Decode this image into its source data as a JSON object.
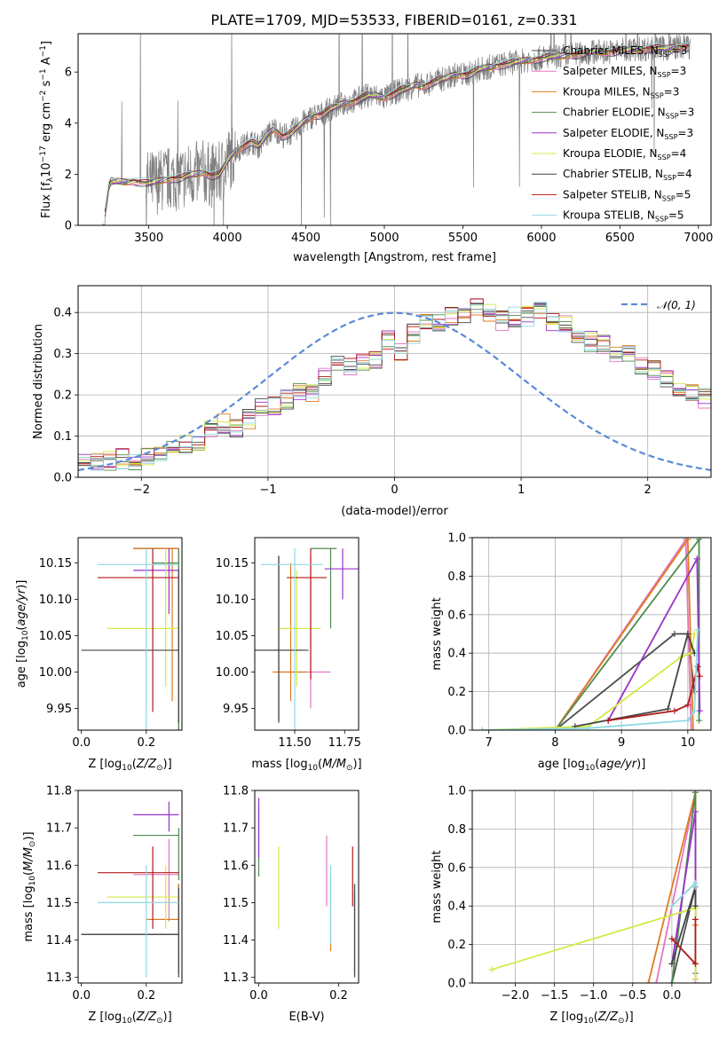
{
  "figure": {
    "title": "PLATE=1709, MJD=53533, FIBERID=0161, z=0.331"
  },
  "colors": {
    "spectrum": "#7f7f7f",
    "gaussian": "#5b8bd6"
  },
  "models": [
    {
      "label": "Chabrier MILES, N",
      "nssp": "=3",
      "color": "#4c4c4c"
    },
    {
      "label": "Salpeter MILES, N",
      "nssp": "=3",
      "color": "#e377c2"
    },
    {
      "label": "Kroupa MILES, N",
      "nssp": "=3",
      "color": "#e07b1f"
    },
    {
      "label": "Chabrier ELODIE, N",
      "nssp": "=3",
      "color": "#4f8b4f"
    },
    {
      "label": "Salpeter ELODIE, N",
      "nssp": "=3",
      "color": "#9932cc"
    },
    {
      "label": "Kroupa ELODIE, N",
      "nssp": "=4",
      "color": "#d4ea45"
    },
    {
      "label": "Chabrier STELIB, N",
      "nssp": "=4",
      "color": "#444444"
    },
    {
      "label": "Salpeter STELIB, N",
      "nssp": "=5",
      "color": "#b21a1a"
    },
    {
      "label": "Kroupa STELIB, N",
      "nssp": "=5",
      "color": "#8fd9e0"
    }
  ],
  "chart_data": [
    {
      "id": "spectrum",
      "type": "line",
      "title": "PLATE=1709, MJD=53533, FIBERID=0161, z=0.331",
      "xlabel": "wavelength [Angstrom, rest frame]",
      "ylabel": "Flux [f",
      "xlim": [
        3050,
        7080
      ],
      "ylim": [
        0,
        7.5
      ],
      "xticks": [
        3500,
        4000,
        4500,
        5000,
        5500,
        6000,
        6500,
        7000
      ],
      "yticks": [
        0,
        2,
        4,
        6
      ],
      "continuum": {
        "x": [
          3210,
          3250,
          3300,
          3350,
          3400,
          3450,
          3500,
          3550,
          3600,
          3650,
          3700,
          3750,
          3800,
          3850,
          3900,
          3950,
          4000,
          4050,
          4100,
          4150,
          4200,
          4250,
          4300,
          4350,
          4400,
          4450,
          4500,
          4550,
          4600,
          4650,
          4700,
          4750,
          4800,
          4850,
          4900,
          4950,
          5000,
          5050,
          5100,
          5150,
          5200,
          5250,
          5300,
          5350,
          5400,
          5450,
          5500,
          5550,
          5600,
          5650,
          5700,
          5750,
          5800,
          5850,
          5900,
          5950,
          6000,
          6050,
          6100,
          6150,
          6200,
          6250,
          6300,
          6350,
          6400,
          6450,
          6500,
          6550,
          6600,
          6650,
          6700,
          6750,
          6800,
          6850,
          6900,
          6950
        ],
        "y": [
          0.0,
          1.7,
          1.7,
          1.7,
          1.75,
          1.7,
          1.65,
          1.7,
          1.8,
          1.85,
          1.85,
          1.95,
          2.0,
          2.1,
          1.95,
          2.0,
          2.5,
          2.9,
          3.1,
          3.3,
          3.1,
          3.5,
          3.8,
          3.5,
          3.6,
          3.85,
          4.1,
          4.3,
          4.35,
          4.55,
          4.65,
          4.8,
          4.85,
          5.0,
          5.1,
          5.05,
          5.0,
          5.15,
          5.3,
          5.35,
          5.5,
          5.45,
          5.6,
          5.7,
          5.75,
          5.9,
          5.9,
          5.95,
          6.1,
          6.15,
          6.25,
          6.3,
          6.35,
          6.4,
          6.45,
          6.5,
          6.55,
          6.6,
          6.6,
          6.65,
          6.7,
          6.7,
          6.75,
          6.8,
          6.8,
          6.8,
          6.85,
          6.85,
          6.9,
          6.9,
          6.95,
          6.95,
          6.9,
          7.0,
          7.0,
          7.0
        ]
      }
    },
    {
      "id": "residuals",
      "type": "histogram",
      "xlabel": "(data-model)/error",
      "ylabel": "Normed distribution",
      "xlim": [
        -2.5,
        2.5
      ],
      "ylim": [
        0,
        0.465
      ],
      "xticks": [
        -2,
        -1,
        0,
        1,
        2
      ],
      "yticks": [
        0.0,
        0.1,
        0.2,
        0.3,
        0.4
      ],
      "bin_start": -2.5,
      "bin_width": 0.1,
      "gaussian_label": "𝒩(0, 1)",
      "base_hist": [
        0.035,
        0.04,
        0.04,
        0.045,
        0.04,
        0.05,
        0.06,
        0.065,
        0.08,
        0.09,
        0.12,
        0.13,
        0.12,
        0.14,
        0.17,
        0.17,
        0.19,
        0.21,
        0.2,
        0.24,
        0.27,
        0.27,
        0.28,
        0.28,
        0.33,
        0.3,
        0.35,
        0.38,
        0.38,
        0.39,
        0.4,
        0.41,
        0.4,
        0.38,
        0.39,
        0.39,
        0.4,
        0.38,
        0.37,
        0.35,
        0.33,
        0.32,
        0.3,
        0.3,
        0.27,
        0.26,
        0.24,
        0.22,
        0.21,
        0.19,
        0.17,
        0.15,
        0.14,
        0.12,
        0.12,
        0.11,
        0.1,
        0.08,
        0.07,
        0.06,
        0.06,
        0.05,
        0.06,
        0.05,
        0.06,
        0.05,
        0.04,
        0.05,
        0.05,
        0.05
      ]
    },
    {
      "id": "age-vs-z",
      "type": "errorbar",
      "xlabel": "Z [log",
      "ylabel": "age  [log",
      "xlim": [
        -0.01,
        0.31
      ],
      "ylim": [
        9.92,
        10.185
      ],
      "xticks": [
        0.0,
        0.2
      ],
      "yticks": [
        9.95,
        10.0,
        10.05,
        10.1,
        10.15
      ],
      "points": [
        {
          "x": 0.3,
          "y": 10.17,
          "xl": 0.16,
          "xh": 0.3,
          "yl": 9.92,
          "yh": 10.17
        },
        {
          "x": 0.3,
          "y": 10.17,
          "xl": 0.25,
          "xh": 0.3,
          "yl": 9.92,
          "yh": 10.17
        },
        {
          "x": 0.28,
          "y": 10.17,
          "xl": 0.16,
          "xh": 0.3,
          "yl": 9.96,
          "yh": 10.17
        },
        {
          "x": 0.3,
          "y": 10.15,
          "xl": 0.22,
          "xh": 0.3,
          "yl": 9.92,
          "yh": 10.17
        },
        {
          "x": 0.27,
          "y": 10.14,
          "xl": 0.16,
          "xh": 0.3,
          "yl": 10.08,
          "yh": 10.17
        },
        {
          "x": 0.26,
          "y": 10.06,
          "xl": 0.08,
          "xh": 0.3,
          "yl": 9.98,
          "yh": 10.17
        },
        {
          "x": 0.3,
          "y": 10.03,
          "xl": 0.0,
          "xh": 0.3,
          "yl": 9.93,
          "yh": 10.14
        },
        {
          "x": 0.22,
          "y": 10.13,
          "xl": 0.05,
          "xh": 0.3,
          "yl": 9.945,
          "yh": 10.17
        },
        {
          "x": 0.2,
          "y": 10.148,
          "xl": 0.05,
          "xh": 0.3,
          "yl": 9.92,
          "yh": 10.17
        }
      ]
    },
    {
      "id": "age-vs-mass",
      "type": "errorbar",
      "xlabel": "mass [log",
      "ylabel": "",
      "xlim": [
        11.3,
        11.82
      ],
      "ylim": [
        9.92,
        10.185
      ],
      "xticks": [
        11.5,
        11.75
      ],
      "yticks": [
        9.95,
        10.0,
        10.05,
        10.1,
        10.15
      ],
      "points": [
        {
          "x": 11.42,
          "y": 10.03,
          "xl": 11.3,
          "xh": 11.57,
          "yl": 9.935,
          "yh": 10.16
        },
        {
          "x": 11.58,
          "y": 10.0,
          "xl": 11.43,
          "xh": 11.68,
          "yl": 9.95,
          "yh": 10.16
        },
        {
          "x": 11.48,
          "y": 10.0,
          "xl": 11.39,
          "xh": 11.56,
          "yl": 9.96,
          "yh": 10.15
        },
        {
          "x": 11.68,
          "y": 10.17,
          "xl": 11.58,
          "xh": 11.71,
          "yl": 10.06,
          "yh": 10.17
        },
        {
          "x": 11.74,
          "y": 10.142,
          "xl": 11.65,
          "xh": 11.82,
          "yl": 10.1,
          "yh": 10.17
        },
        {
          "x": 11.51,
          "y": 10.06,
          "xl": 11.42,
          "xh": 11.63,
          "yl": 9.98,
          "yh": 10.14
        },
        {
          "x": 11.42,
          "y": 10.03,
          "xl": 11.3,
          "xh": 11.55,
          "yl": 9.93,
          "yh": 10.16
        },
        {
          "x": 11.58,
          "y": 10.13,
          "xl": 11.46,
          "xh": 11.66,
          "yl": 9.99,
          "yh": 10.17
        },
        {
          "x": 11.5,
          "y": 10.148,
          "xl": 11.33,
          "xh": 11.64,
          "yl": 9.92,
          "yh": 10.17
        }
      ]
    },
    {
      "id": "weight-vs-age",
      "type": "line",
      "xlabel": "age  [log",
      "ylabel": "mass weight",
      "xlim": [
        6.75,
        10.35
      ],
      "ylim": [
        0,
        1.0
      ],
      "xticks": [
        7,
        8,
        9,
        10
      ],
      "yticks": [
        0.0,
        0.2,
        0.4,
        0.6,
        0.8,
        1.0
      ],
      "series": [
        {
          "x": [
            8.0,
            9.8,
            10.0,
            10.1
          ],
          "y": [
            0.0,
            0.5,
            0.5,
            0.2
          ]
        },
        {
          "x": [
            8.0,
            9.97,
            10.05
          ],
          "y": [
            0.0,
            0.99,
            0.0
          ]
        },
        {
          "x": [
            8.0,
            10.0,
            10.08
          ],
          "y": [
            0.0,
            0.99,
            0.0
          ]
        },
        {
          "x": [
            8.0,
            10.17,
            10.17
          ],
          "y": [
            0.0,
            0.99,
            0.05
          ]
        },
        {
          "x": [
            8.8,
            10.14,
            10.18
          ],
          "y": [
            0.05,
            0.89,
            0.1
          ]
        },
        {
          "x": [
            6.9,
            8.5,
            9.9,
            10.05,
            10.1
          ],
          "y": [
            0.0,
            0.02,
            0.38,
            0.4,
            0.5
          ]
        },
        {
          "x": [
            8.3,
            9.7,
            10.0,
            10.1
          ],
          "y": [
            0.02,
            0.11,
            0.5,
            0.4
          ]
        },
        {
          "x": [
            8.8,
            9.8,
            10.0,
            10.15,
            10.18
          ],
          "y": [
            0.05,
            0.1,
            0.13,
            0.33,
            0.28
          ]
        },
        {
          "x": [
            6.9,
            8.5,
            10.0,
            10.1,
            10.15
          ],
          "y": [
            0.0,
            0.01,
            0.05,
            0.1,
            0.52
          ]
        }
      ]
    },
    {
      "id": "mass-vs-z",
      "type": "errorbar",
      "xlabel": "Z [log",
      "ylabel": "mass [log",
      "xlim": [
        -0.01,
        0.31
      ],
      "ylim": [
        11.285,
        11.8
      ],
      "xticks": [
        0.0,
        0.2
      ],
      "yticks": [
        11.3,
        11.4,
        11.5,
        11.6,
        11.7,
        11.8
      ],
      "points": [
        {
          "x": 0.3,
          "y": 11.415,
          "xl": 0.0,
          "xh": 0.3,
          "yl": 11.3,
          "yh": 11.55
        },
        {
          "x": 0.27,
          "y": 11.575,
          "xl": 0.16,
          "xh": 0.3,
          "yl": 11.45,
          "yh": 11.67
        },
        {
          "x": 0.3,
          "y": 11.455,
          "xl": 0.2,
          "xh": 0.3,
          "yl": 11.37,
          "yh": 11.55
        },
        {
          "x": 0.3,
          "y": 11.68,
          "xl": 0.16,
          "xh": 0.3,
          "yl": 11.56,
          "yh": 11.7
        },
        {
          "x": 0.27,
          "y": 11.735,
          "xl": 0.16,
          "xh": 0.3,
          "yl": 11.69,
          "yh": 11.77
        },
        {
          "x": 0.26,
          "y": 11.515,
          "xl": 0.08,
          "xh": 0.3,
          "yl": 11.43,
          "yh": 11.6
        },
        {
          "x": 0.3,
          "y": 11.415,
          "xl": 0.0,
          "xh": 0.3,
          "yl": 11.31,
          "yh": 11.54
        },
        {
          "x": 0.22,
          "y": 11.58,
          "xl": 0.05,
          "xh": 0.3,
          "yl": 11.43,
          "yh": 11.65
        },
        {
          "x": 0.2,
          "y": 11.5,
          "xl": 0.05,
          "xh": 0.3,
          "yl": 11.3,
          "yh": 11.6
        }
      ]
    },
    {
      "id": "mass-vs-ebv",
      "type": "errorbar",
      "xlabel": "E(B-V)",
      "ylabel": "",
      "xlim": [
        -0.01,
        0.25
      ],
      "ylim": [
        11.285,
        11.8
      ],
      "xticks": [
        0.0,
        0.2
      ],
      "yticks": [
        11.3,
        11.4,
        11.5,
        11.6,
        11.7,
        11.8
      ],
      "points": [
        {
          "x": 0.24,
          "y": 11.42,
          "yl": 11.31,
          "yh": 11.53
        },
        {
          "x": 0.17,
          "y": 11.58,
          "yl": 11.49,
          "yh": 11.68
        },
        {
          "x": 0.18,
          "y": 11.47,
          "yl": 11.37,
          "yh": 11.57
        },
        {
          "x": 0.0,
          "y": 11.68,
          "yl": 11.57,
          "yh": 11.76
        },
        {
          "x": 0.0,
          "y": 11.7,
          "yl": 11.62,
          "yh": 11.78
        },
        {
          "x": 0.05,
          "y": 11.54,
          "yl": 11.43,
          "yh": 11.65
        },
        {
          "x": 0.24,
          "y": 11.42,
          "yl": 11.3,
          "yh": 11.55
        },
        {
          "x": 0.235,
          "y": 11.58,
          "yl": 11.49,
          "yh": 11.65
        },
        {
          "x": 0.18,
          "y": 11.5,
          "yl": 11.39,
          "yh": 11.6
        }
      ]
    },
    {
      "id": "weight-vs-z",
      "type": "line",
      "xlabel": "Z [log",
      "ylabel": "mass weight",
      "xlim": [
        -2.55,
        0.5
      ],
      "ylim": [
        0,
        1.0
      ],
      "xticks": [
        -2.0,
        -1.5,
        -1.0,
        -0.5,
        0.0
      ],
      "yticks": [
        0.0,
        0.2,
        0.4,
        0.6,
        0.8,
        1.0
      ],
      "series": [
        {
          "x": [
            0.0,
            0.3,
            0.3
          ],
          "y": [
            0.0,
            0.5,
            0.1
          ]
        },
        {
          "x": [
            -0.2,
            0.3,
            0.3
          ],
          "y": [
            0.0,
            0.99,
            0.0
          ]
        },
        {
          "x": [
            -0.3,
            0.3,
            0.3
          ],
          "y": [
            0.0,
            0.99,
            0.3
          ]
        },
        {
          "x": [
            0.0,
            0.3,
            0.3
          ],
          "y": [
            0.0,
            0.99,
            0.05
          ]
        },
        {
          "x": [
            0.0,
            0.3,
            0.3
          ],
          "y": [
            0.1,
            0.89,
            0.02
          ]
        },
        {
          "x": [
            -2.3,
            0.3,
            0.3
          ],
          "y": [
            0.07,
            0.39,
            0.02
          ]
        },
        {
          "x": [
            0.0,
            0.3,
            0.3
          ],
          "y": [
            0.1,
            0.5,
            0.4
          ]
        },
        {
          "x": [
            0.0,
            0.3,
            0.3
          ],
          "y": [
            0.23,
            0.1,
            0.33
          ]
        },
        {
          "x": [
            0.0,
            0.3,
            0.3
          ],
          "y": [
            0.4,
            0.52,
            0.5
          ]
        }
      ]
    }
  ]
}
